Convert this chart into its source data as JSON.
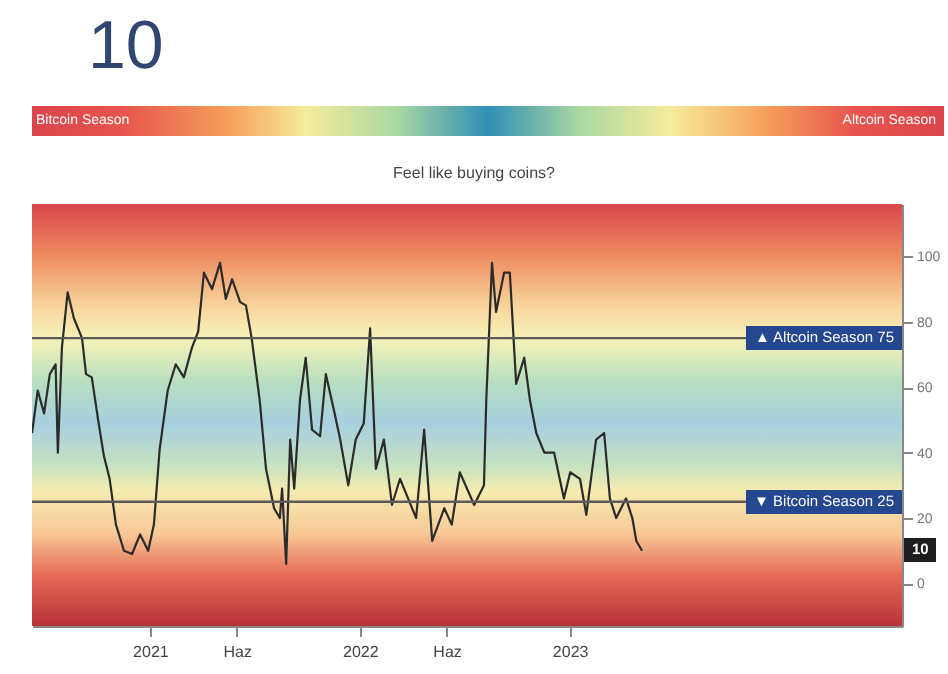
{
  "chart_data": {
    "type": "line",
    "annotations": [
      "10",
      "Bitcoin Season",
      "Altcoin Season",
      "Feel like buying coins?",
      {
        "text": "10",
        "y": 10
      }
    ],
    "x": [
      "2020-06-10",
      "2020-06-20",
      "2020-07-01",
      "2020-07-11",
      "2020-07-21",
      "2020-07-25",
      "2020-08-01",
      "2020-08-11",
      "2020-08-22",
      "2020-09-05",
      "2020-09-12",
      "2020-09-22",
      "2020-10-03",
      "2020-10-13",
      "2020-10-23",
      "2020-11-03",
      "2020-11-17",
      "2020-12-01",
      "2020-12-15",
      "2020-12-29",
      "2021-01-08",
      "2021-01-18",
      "2021-02-01",
      "2021-02-15",
      "2021-03-01",
      "2021-03-15",
      "2021-03-26",
      "2021-04-05",
      "2021-04-19",
      "2021-05-03",
      "2021-05-13",
      "2021-05-24",
      "2021-06-07",
      "2021-06-17",
      "2021-06-27",
      "2021-07-11",
      "2021-07-22",
      "2021-08-05",
      "2021-08-15",
      "2021-08-19",
      "2021-08-26",
      "2021-09-02",
      "2021-09-09",
      "2021-09-19",
      "2021-09-29",
      "2021-10-10",
      "2021-10-24",
      "2021-11-03",
      "2021-11-17",
      "2021-11-28",
      "2021-12-12",
      "2021-12-25",
      "2022-01-08",
      "2022-01-19",
      "2022-01-29",
      "2022-02-12",
      "2022-02-26",
      "2022-03-12",
      "2022-03-26",
      "2022-04-09",
      "2022-04-23",
      "2022-05-07",
      "2022-05-28",
      "2022-06-10",
      "2022-06-24",
      "2022-07-19",
      "2022-08-05",
      "2022-08-09",
      "2022-08-19",
      "2022-08-26",
      "2022-09-09",
      "2022-09-19",
      "2022-09-30",
      "2022-10-14",
      "2022-10-24",
      "2022-11-04",
      "2022-11-18",
      "2022-12-05",
      "2022-12-22",
      "2023-01-02",
      "2023-01-19",
      "2023-01-30",
      "2023-02-16",
      "2023-03-02",
      "2023-03-12",
      "2023-03-23",
      "2023-04-09",
      "2023-04-20",
      "2023-04-27",
      "2023-05-07"
    ],
    "series": [
      {
        "color": "#2b2b2b",
        "values": [
          46,
          59,
          52,
          64,
          67,
          40,
          72,
          89,
          81,
          75,
          64,
          63,
          50,
          39,
          32,
          18,
          10,
          9,
          15,
          10,
          18,
          41,
          59,
          67,
          63,
          72,
          77,
          95,
          90,
          98,
          87,
          93,
          86,
          85,
          75,
          56,
          35,
          23,
          20,
          29,
          6,
          44,
          29,
          56,
          69,
          47,
          45,
          64,
          53,
          44,
          30,
          44,
          49,
          78,
          35,
          44,
          24,
          32,
          26,
          20,
          47,
          13,
          23,
          18,
          34,
          24,
          30,
          56,
          98,
          83,
          95,
          95,
          61,
          69,
          56,
          46,
          40,
          40,
          26,
          34,
          32,
          21,
          44,
          46,
          26,
          20,
          26,
          20,
          13,
          10
        ]
      }
    ],
    "xlim": [
      "2020-06-10",
      "2024-08-01"
    ],
    "xticks": [
      {
        "value": "2021-01-01",
        "label": "2021"
      },
      {
        "value": "2021-06-01",
        "label": "Haz"
      },
      {
        "value": "2022-01-01",
        "label": "2022"
      },
      {
        "value": "2022-06-01",
        "label": "Haz"
      },
      {
        "value": "2023-01-01",
        "label": "2023"
      }
    ],
    "ylim": [
      -13,
      116
    ],
    "yticks": [
      0,
      20,
      40,
      60,
      80,
      100
    ],
    "ref_lines": [
      {
        "axis": "y",
        "value": 75,
        "label": "▲ Altcoin Season  75",
        "color": "#5a5a5a"
      },
      {
        "axis": "y",
        "value": 25,
        "label": "▼ Bitcoin Season  25",
        "color": "#5a5a5a"
      }
    ]
  }
}
